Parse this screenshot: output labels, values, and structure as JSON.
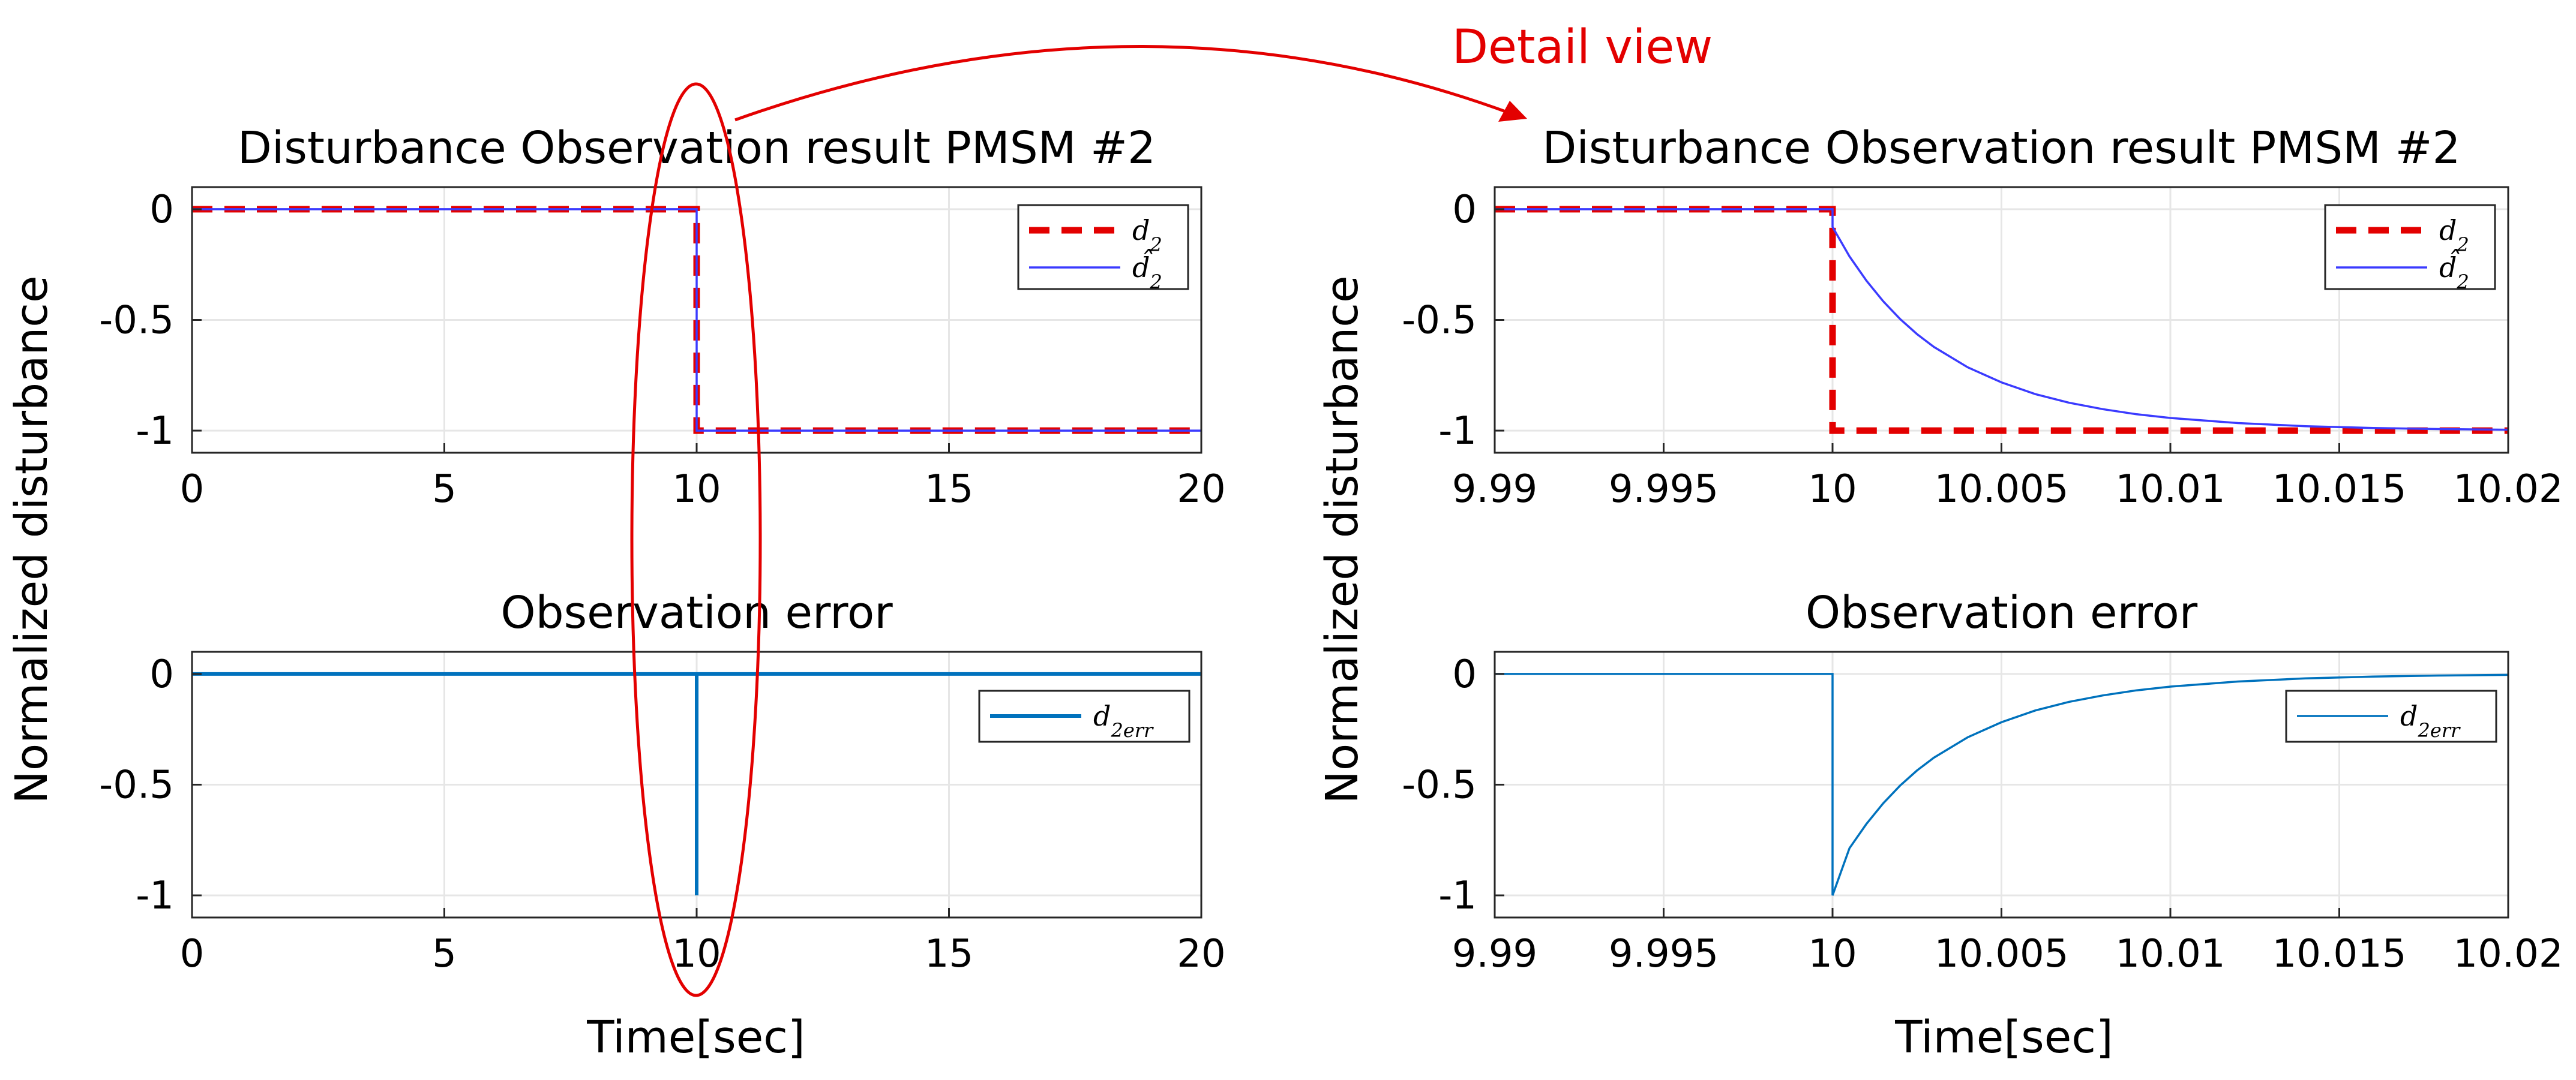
{
  "figure": {
    "shared_ylabel": "Normalized disturbance",
    "shared_xlabel": "Time[sec]",
    "annotation": {
      "text": "Detail view",
      "color": "#e30000"
    }
  },
  "colors": {
    "d2": "#e30000",
    "d2hat": "#3b3bff",
    "err": "#0072bd",
    "grid": "#e6e6e6"
  },
  "chart_data": [
    {
      "id": "top-left",
      "type": "line",
      "title": "Disturbance Observation result PMSM #2",
      "xlim": [
        0,
        20
      ],
      "ylim": [
        -1.1,
        0.1
      ],
      "xticks": [
        0,
        5,
        10,
        15,
        20
      ],
      "xtick_labels": [
        "0",
        "5",
        "10",
        "15",
        "20"
      ],
      "yticks": [
        0,
        -0.5,
        -1
      ],
      "ytick_labels": [
        "0",
        "-0.5",
        "-1"
      ],
      "legend": {
        "position": "top-right",
        "entries": [
          "d_2",
          "d̂_2"
        ]
      },
      "series": [
        {
          "name": "d_2",
          "style": "dashed",
          "color_key": "d2",
          "x": [
            0,
            10,
            10,
            20
          ],
          "y": [
            0,
            0,
            -1,
            -1
          ]
        },
        {
          "name": "d̂_2",
          "style": "solid",
          "color_key": "d2hat",
          "x": [
            0,
            10,
            10,
            20
          ],
          "y": [
            0,
            0,
            -1,
            -1
          ]
        }
      ]
    },
    {
      "id": "bottom-left",
      "type": "line",
      "title": "Observation error",
      "xlim": [
        0,
        20
      ],
      "ylim": [
        -1.1,
        0.1
      ],
      "xticks": [
        0,
        5,
        10,
        15,
        20
      ],
      "xtick_labels": [
        "0",
        "5",
        "10",
        "15",
        "20"
      ],
      "yticks": [
        0,
        -0.5,
        -1
      ],
      "ytick_labels": [
        "0",
        "-0.5",
        "-1"
      ],
      "legend": {
        "position": "top-right",
        "entries": [
          "d_2err"
        ]
      },
      "series": [
        {
          "name": "d_2err",
          "style": "solid",
          "color_key": "err",
          "x": [
            0,
            10,
            10,
            10.001,
            20
          ],
          "y": [
            0,
            0,
            -1,
            0,
            0
          ]
        }
      ]
    },
    {
      "id": "top-right",
      "type": "line",
      "title": "Disturbance Observation result PMSM #2",
      "xlim": [
        9.99,
        10.02
      ],
      "ylim": [
        -1.1,
        0.1
      ],
      "xticks": [
        9.99,
        9.995,
        10,
        10.005,
        10.01,
        10.015,
        10.02
      ],
      "xtick_labels": [
        "9.99",
        "9.995",
        "10",
        "10.005",
        "10.01",
        "10.015",
        "10.02"
      ],
      "yticks": [
        0,
        -0.5,
        -1
      ],
      "ytick_labels": [
        "0",
        "-0.5",
        "-1"
      ],
      "legend": {
        "position": "top-right",
        "entries": [
          "d_2",
          "d̂_2"
        ]
      },
      "series": [
        {
          "name": "d_2",
          "style": "dashed",
          "color_key": "d2",
          "x": [
            9.99,
            10,
            10,
            10.02
          ],
          "y": [
            0,
            0,
            -1,
            -1
          ]
        },
        {
          "name": "d̂_2",
          "style": "solid",
          "color_key": "d2hat",
          "x": [
            9.99,
            10,
            10,
            10.0005,
            10.001,
            10.0015,
            10.002,
            10.0025,
            10.003,
            10.004,
            10.005,
            10.006,
            10.007,
            10.008,
            10.009,
            10.01,
            10.012,
            10.014,
            10.016,
            10.018,
            10.02
          ],
          "y": [
            0,
            0,
            -0.08,
            -0.213,
            -0.322,
            -0.416,
            -0.496,
            -0.564,
            -0.622,
            -0.714,
            -0.782,
            -0.835,
            -0.874,
            -0.903,
            -0.926,
            -0.943,
            -0.966,
            -0.98,
            -0.988,
            -0.993,
            -0.996
          ]
        }
      ]
    },
    {
      "id": "bottom-right",
      "type": "line",
      "title": "Observation error",
      "xlim": [
        9.99,
        10.02
      ],
      "ylim": [
        -1.1,
        0.1
      ],
      "xticks": [
        9.99,
        9.995,
        10,
        10.005,
        10.01,
        10.015,
        10.02
      ],
      "xtick_labels": [
        "9.99",
        "9.995",
        "10",
        "10.005",
        "10.01",
        "10.015",
        "10.02"
      ],
      "yticks": [
        0,
        -0.5,
        -1
      ],
      "ytick_labels": [
        "0",
        "-0.5",
        "-1"
      ],
      "legend": {
        "position": "top-right",
        "entries": [
          "d_2err"
        ]
      },
      "series": [
        {
          "name": "d_2err",
          "style": "solid",
          "color_key": "err",
          "x": [
            9.99,
            10,
            10,
            10.0005,
            10.001,
            10.0015,
            10.002,
            10.0025,
            10.003,
            10.004,
            10.005,
            10.006,
            10.007,
            10.008,
            10.009,
            10.01,
            10.012,
            10.014,
            10.016,
            10.018,
            10.02
          ],
          "y": [
            0,
            0,
            -1,
            -0.787,
            -0.678,
            -0.584,
            -0.504,
            -0.436,
            -0.378,
            -0.286,
            -0.218,
            -0.165,
            -0.126,
            -0.097,
            -0.074,
            -0.057,
            -0.034,
            -0.02,
            -0.012,
            -0.007,
            -0.004
          ]
        }
      ]
    }
  ]
}
